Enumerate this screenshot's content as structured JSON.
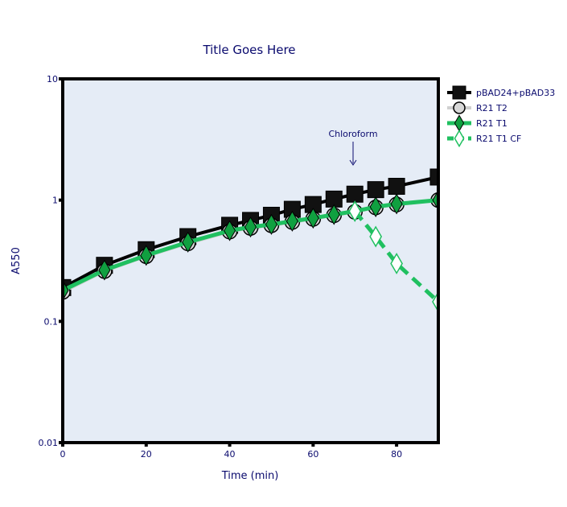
{
  "chart_data": {
    "type": "line",
    "title": "Title Goes Here",
    "xlabel": "Time (min)",
    "ylabel": "A550",
    "xlim": [
      0,
      90
    ],
    "ylim": [
      0.01,
      10
    ],
    "yscale": "log",
    "xticks": [
      "0",
      "20",
      "40",
      "60",
      "80"
    ],
    "xtick_values": [
      0,
      20,
      40,
      60,
      80
    ],
    "yticks": [
      "0.01",
      "0.1",
      "1",
      "10"
    ],
    "ytick_values": [
      0.01,
      0.1,
      1,
      10
    ],
    "grid": false,
    "legend_position": "top-right",
    "plot_background": "#e5ecf6",
    "annotation": {
      "text": "Chloroform",
      "x": 70,
      "y": 1.3,
      "arrow": true
    },
    "series": [
      {
        "name": "pBAD24+pBAD33",
        "color": "#000000",
        "marker": "square",
        "line": "solid",
        "x": [
          0,
          10,
          20,
          30,
          40,
          45,
          50,
          55,
          60,
          65,
          70,
          75,
          80,
          90
        ],
        "y": [
          0.19,
          0.29,
          0.39,
          0.5,
          0.62,
          0.68,
          0.75,
          0.84,
          0.92,
          1.02,
          1.12,
          1.22,
          1.3,
          1.55
        ]
      },
      {
        "name": "R21 T2",
        "color": "#d0d0d0",
        "marker": "circle",
        "line": "solid",
        "x": [
          0,
          10,
          20,
          30,
          40,
          45,
          50,
          55,
          60,
          65,
          70,
          75,
          80,
          90
        ],
        "y": [
          0.175,
          0.26,
          0.345,
          0.44,
          0.55,
          0.59,
          0.62,
          0.66,
          0.7,
          0.75,
          0.8,
          0.87,
          0.92,
          1.0
        ]
      },
      {
        "name": "R21 T1",
        "color": "#20c060",
        "marker": "diamond",
        "line": "solid",
        "x": [
          0,
          10,
          20,
          30,
          40,
          45,
          50,
          55,
          60,
          65,
          70,
          75,
          80,
          90
        ],
        "y": [
          0.18,
          0.265,
          0.35,
          0.45,
          0.56,
          0.6,
          0.63,
          0.67,
          0.71,
          0.76,
          0.81,
          0.88,
          0.93,
          1.0
        ]
      },
      {
        "name": "R21 T1 CF",
        "color": "#20c060",
        "marker": "diamond-open",
        "line": "dash",
        "x": [
          70,
          75,
          80,
          90
        ],
        "y": [
          0.81,
          0.5,
          0.3,
          0.145
        ]
      }
    ]
  }
}
